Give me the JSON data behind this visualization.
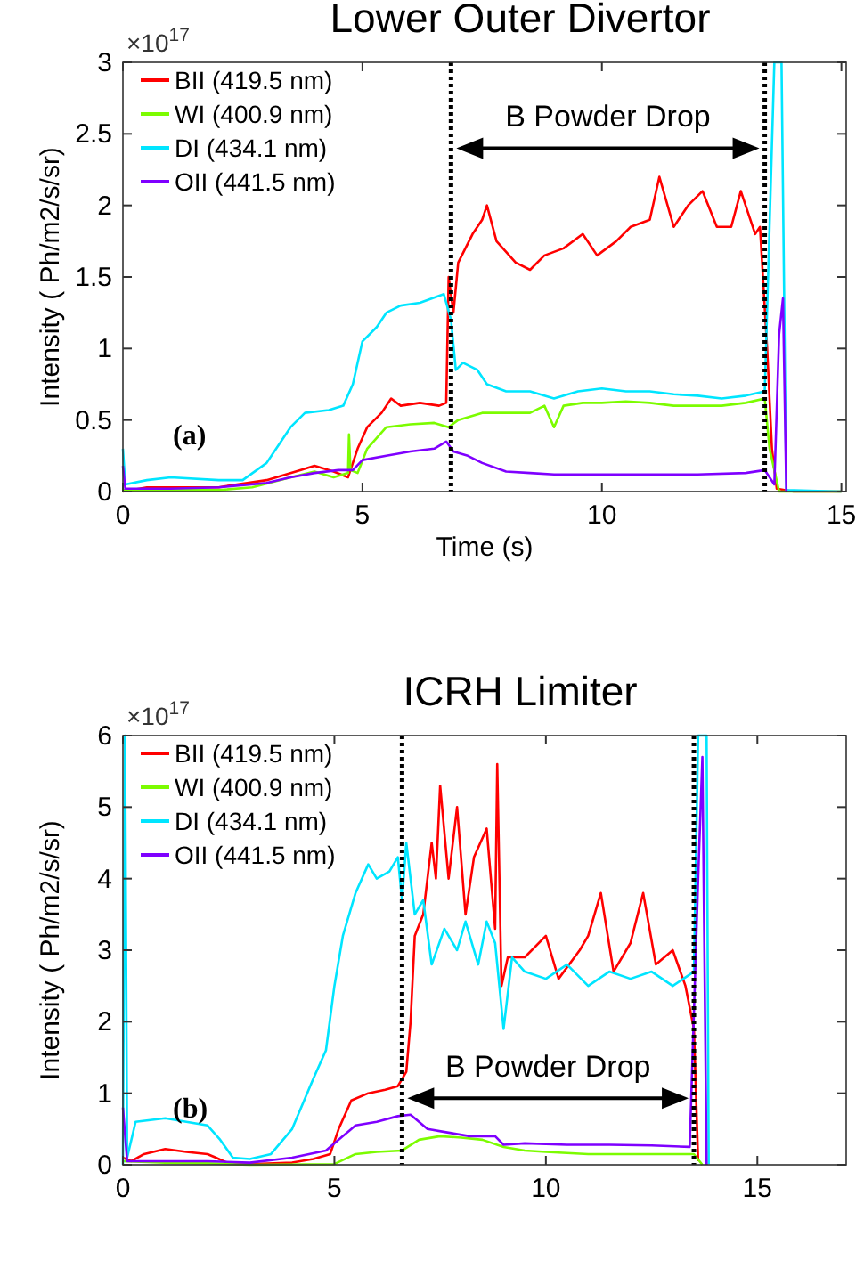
{
  "chart_data": [
    {
      "type": "line",
      "title": "Lower Outer Divertor",
      "xlabel": "Time (s)",
      "ylabel": "Intensity ( Ph/m2/s/sr)",
      "xlim": [
        0,
        15.1
      ],
      "ylim": [
        0,
        3
      ],
      "xticks": [
        0,
        5,
        10,
        15
      ],
      "yticks": [
        0,
        0.5,
        1,
        1.5,
        2,
        2.5,
        3
      ],
      "grid": false,
      "legend": "top left",
      "annotations": [
        "×10$^{17}$",
        "(a)",
        "B Powder Drop"
      ],
      "ref_lines": [
        {
          "axis": "x",
          "value": 6.85,
          "line_style": "dotted",
          "color": "#000000"
        },
        {
          "axis": "x",
          "value": 13.4,
          "line_style": "dotted",
          "color": "#000000"
        }
      ],
      "series": [
        {
          "name": "BII (419.5 nm)",
          "color": "#ff0000",
          "x": [
            0,
            0.5,
            1,
            2,
            3,
            3.7,
            4,
            4.4,
            4.7,
            4.9,
            5.1,
            5.4,
            5.6,
            5.8,
            6.2,
            6.6,
            6.75,
            6.8,
            6.9,
            7.0,
            7.3,
            7.5,
            7.6,
            7.8,
            8.2,
            8.5,
            8.8,
            9.2,
            9.6,
            9.9,
            10.3,
            10.6,
            11,
            11.2,
            11.5,
            11.8,
            12.1,
            12.4,
            12.7,
            12.9,
            13.2,
            13.3,
            13.45,
            13.55,
            13.65,
            14,
            15
          ],
          "values": [
            0,
            0.03,
            0.03,
            0.03,
            0.08,
            0.15,
            0.18,
            0.14,
            0.1,
            0.3,
            0.45,
            0.55,
            0.65,
            0.6,
            0.62,
            0.6,
            0.62,
            1.5,
            1.25,
            1.6,
            1.8,
            1.9,
            2.0,
            1.75,
            1.6,
            1.55,
            1.65,
            1.7,
            1.8,
            1.65,
            1.75,
            1.85,
            1.9,
            2.2,
            1.85,
            2.0,
            2.1,
            1.85,
            1.85,
            2.1,
            1.8,
            1.85,
            1.0,
            0.3,
            0.02,
            0,
            0
          ]
        },
        {
          "name": "WI (400.9 nm)",
          "color": "#7cfc00",
          "x": [
            0,
            1,
            2,
            2.7,
            3.5,
            4,
            4.4,
            4.7,
            4.72,
            4.75,
            4.9,
            5.1,
            5.5,
            6,
            6.5,
            6.8,
            7.0,
            7.5,
            8,
            8.5,
            8.8,
            9.0,
            9.2,
            9.6,
            10,
            10.5,
            11,
            11.5,
            12,
            12.5,
            13,
            13.4,
            13.5,
            13.7,
            15
          ],
          "values": [
            0.01,
            0.01,
            0.01,
            0.03,
            0.1,
            0.14,
            0.1,
            0.13,
            0.4,
            0.15,
            0.13,
            0.3,
            0.45,
            0.47,
            0.48,
            0.45,
            0.5,
            0.55,
            0.55,
            0.55,
            0.6,
            0.45,
            0.6,
            0.62,
            0.62,
            0.63,
            0.62,
            0.6,
            0.6,
            0.6,
            0.62,
            0.65,
            0.3,
            0,
            0
          ]
        },
        {
          "name": "DI (434.1 nm)",
          "color": "#00e5ff",
          "x": [
            0,
            0.05,
            0.5,
            1,
            2,
            2.5,
            3,
            3.5,
            3.8,
            4.3,
            4.6,
            4.8,
            5,
            5.3,
            5.5,
            5.8,
            6.2,
            6.7,
            6.85,
            6.95,
            7.1,
            7.4,
            7.6,
            8,
            8.5,
            9,
            9.5,
            10,
            10.5,
            11,
            11.5,
            12,
            12.5,
            13,
            13.4,
            13.6,
            13.75,
            13.85,
            15
          ],
          "values": [
            0.3,
            0.05,
            0.08,
            0.1,
            0.08,
            0.08,
            0.2,
            0.45,
            0.55,
            0.57,
            0.6,
            0.75,
            1.05,
            1.15,
            1.25,
            1.3,
            1.32,
            1.38,
            1.2,
            0.85,
            0.9,
            0.85,
            0.75,
            0.7,
            0.7,
            0.65,
            0.7,
            0.72,
            0.7,
            0.7,
            0.68,
            0.67,
            0.65,
            0.67,
            0.7,
            3,
            3,
            0.01,
            0
          ]
        },
        {
          "name": "OII (441.5 nm)",
          "color": "#7f00ff",
          "x": [
            0,
            0.05,
            1,
            2,
            3,
            3.5,
            4,
            4.5,
            4.8,
            5,
            5.5,
            6,
            6.5,
            6.75,
            6.9,
            7.2,
            7.5,
            8,
            8.5,
            9,
            10,
            11,
            12,
            13,
            13.4,
            13.6,
            13.7,
            13.78,
            13.85
          ],
          "values": [
            0.18,
            0.02,
            0.02,
            0.03,
            0.06,
            0.1,
            0.13,
            0.15,
            0.15,
            0.22,
            0.25,
            0.28,
            0.3,
            0.35,
            0.28,
            0.25,
            0.2,
            0.14,
            0.13,
            0.12,
            0.12,
            0.12,
            0.12,
            0.13,
            0.15,
            0.05,
            1.1,
            1.35,
            0
          ]
        }
      ]
    },
    {
      "type": "line",
      "title": "ICRH Limiter",
      "ylabel": "Intensity ( Ph/m2/s/sr)",
      "xlim": [
        0,
        17.1
      ],
      "ylim": [
        0,
        6
      ],
      "xticks": [
        0,
        5,
        10,
        15
      ],
      "yticks": [
        0,
        1,
        2,
        3,
        4,
        5,
        6
      ],
      "grid": false,
      "legend": "top left",
      "annotations": [
        "×10$^{17}$",
        "(b)",
        "B Powder Drop"
      ],
      "ref_lines": [
        {
          "axis": "x",
          "value": 6.6,
          "line_style": "dotted",
          "color": "#000000"
        },
        {
          "axis": "x",
          "value": 13.5,
          "line_style": "dotted",
          "color": "#000000"
        }
      ],
      "series": [
        {
          "name": "BII (419.5 nm)",
          "color": "#ff0000",
          "x": [
            0,
            0.2,
            0.5,
            1,
            1.5,
            2,
            2.2,
            2.5,
            3,
            4,
            4.5,
            4.9,
            5.1,
            5.4,
            5.8,
            6.2,
            6.5,
            6.7,
            6.8,
            6.9,
            7.1,
            7.3,
            7.4,
            7.5,
            7.7,
            7.9,
            8.1,
            8.3,
            8.6,
            8.8,
            8.85,
            8.95,
            9.1,
            9.5,
            10,
            10.3,
            10.8,
            11,
            11.3,
            11.6,
            12,
            12.3,
            12.6,
            13,
            13.3,
            13.5,
            13.6
          ],
          "values": [
            0.1,
            0.05,
            0.15,
            0.22,
            0.18,
            0.15,
            0.1,
            0.02,
            0.01,
            0.03,
            0.08,
            0.15,
            0.5,
            0.9,
            1.0,
            1.05,
            1.1,
            1.3,
            2.0,
            3.2,
            3.5,
            4.5,
            4.0,
            5.3,
            4.0,
            5.0,
            3.5,
            4.3,
            4.7,
            3.3,
            5.6,
            2.5,
            2.9,
            2.9,
            3.2,
            2.6,
            3.0,
            3.2,
            3.8,
            2.7,
            3.1,
            3.8,
            2.8,
            3.0,
            2.5,
            1.9,
            0.05
          ]
        },
        {
          "name": "WI (400.9 nm)",
          "color": "#7cfc00",
          "x": [
            0,
            1,
            2,
            3,
            5,
            5.5,
            6,
            6.6,
            7,
            7.5,
            8,
            8.5,
            9,
            9.5,
            10,
            11,
            12,
            13,
            13.5,
            13.7
          ],
          "values": [
            0.05,
            0.03,
            0.02,
            0,
            0.01,
            0.15,
            0.18,
            0.2,
            0.35,
            0.4,
            0.38,
            0.35,
            0.25,
            0.2,
            0.18,
            0.15,
            0.15,
            0.15,
            0.15,
            0
          ]
        },
        {
          "name": "DI (434.1 nm)",
          "color": "#00e5ff",
          "x": [
            0,
            0.05,
            0.1,
            0.3,
            1,
            1.5,
            2,
            2.3,
            2.6,
            3,
            3.5,
            4,
            4.5,
            4.8,
            5,
            5.2,
            5.5,
            5.8,
            6,
            6.3,
            6.5,
            6.6,
            6.7,
            6.9,
            7.1,
            7.3,
            7.6,
            7.9,
            8.1,
            8.4,
            8.6,
            8.8,
            9.0,
            9.2,
            9.5,
            10,
            10.5,
            11,
            11.5,
            12,
            12.5,
            13,
            13.5,
            13.6,
            13.8,
            13.85
          ],
          "values": [
            0,
            6,
            0.1,
            0.6,
            0.65,
            0.6,
            0.55,
            0.35,
            0.1,
            0.08,
            0.15,
            0.5,
            1.2,
            1.6,
            2.5,
            3.2,
            3.8,
            4.2,
            4.0,
            4.1,
            4.3,
            3.7,
            4.5,
            3.5,
            3.7,
            2.8,
            3.3,
            3.0,
            3.4,
            2.8,
            3.4,
            3.1,
            1.9,
            2.9,
            2.7,
            2.6,
            2.8,
            2.5,
            2.7,
            2.6,
            2.7,
            2.5,
            2.7,
            6,
            6,
            0.01
          ]
        },
        {
          "name": "OII (441.5 nm)",
          "color": "#7f00ff",
          "x": [
            0,
            0.1,
            1,
            2,
            3,
            4,
            4.8,
            5.2,
            5.5,
            6,
            6.5,
            6.8,
            7.2,
            7.7,
            8.2,
            8.8,
            9,
            9.5,
            10.5,
            11.5,
            12.5,
            13.4,
            13.6,
            13.7,
            13.8
          ],
          "values": [
            0.8,
            0.05,
            0.05,
            0.05,
            0.03,
            0.1,
            0.2,
            0.4,
            0.55,
            0.6,
            0.68,
            0.7,
            0.5,
            0.45,
            0.4,
            0.4,
            0.28,
            0.3,
            0.28,
            0.28,
            0.27,
            0.25,
            4,
            5.7,
            0
          ]
        }
      ]
    }
  ]
}
